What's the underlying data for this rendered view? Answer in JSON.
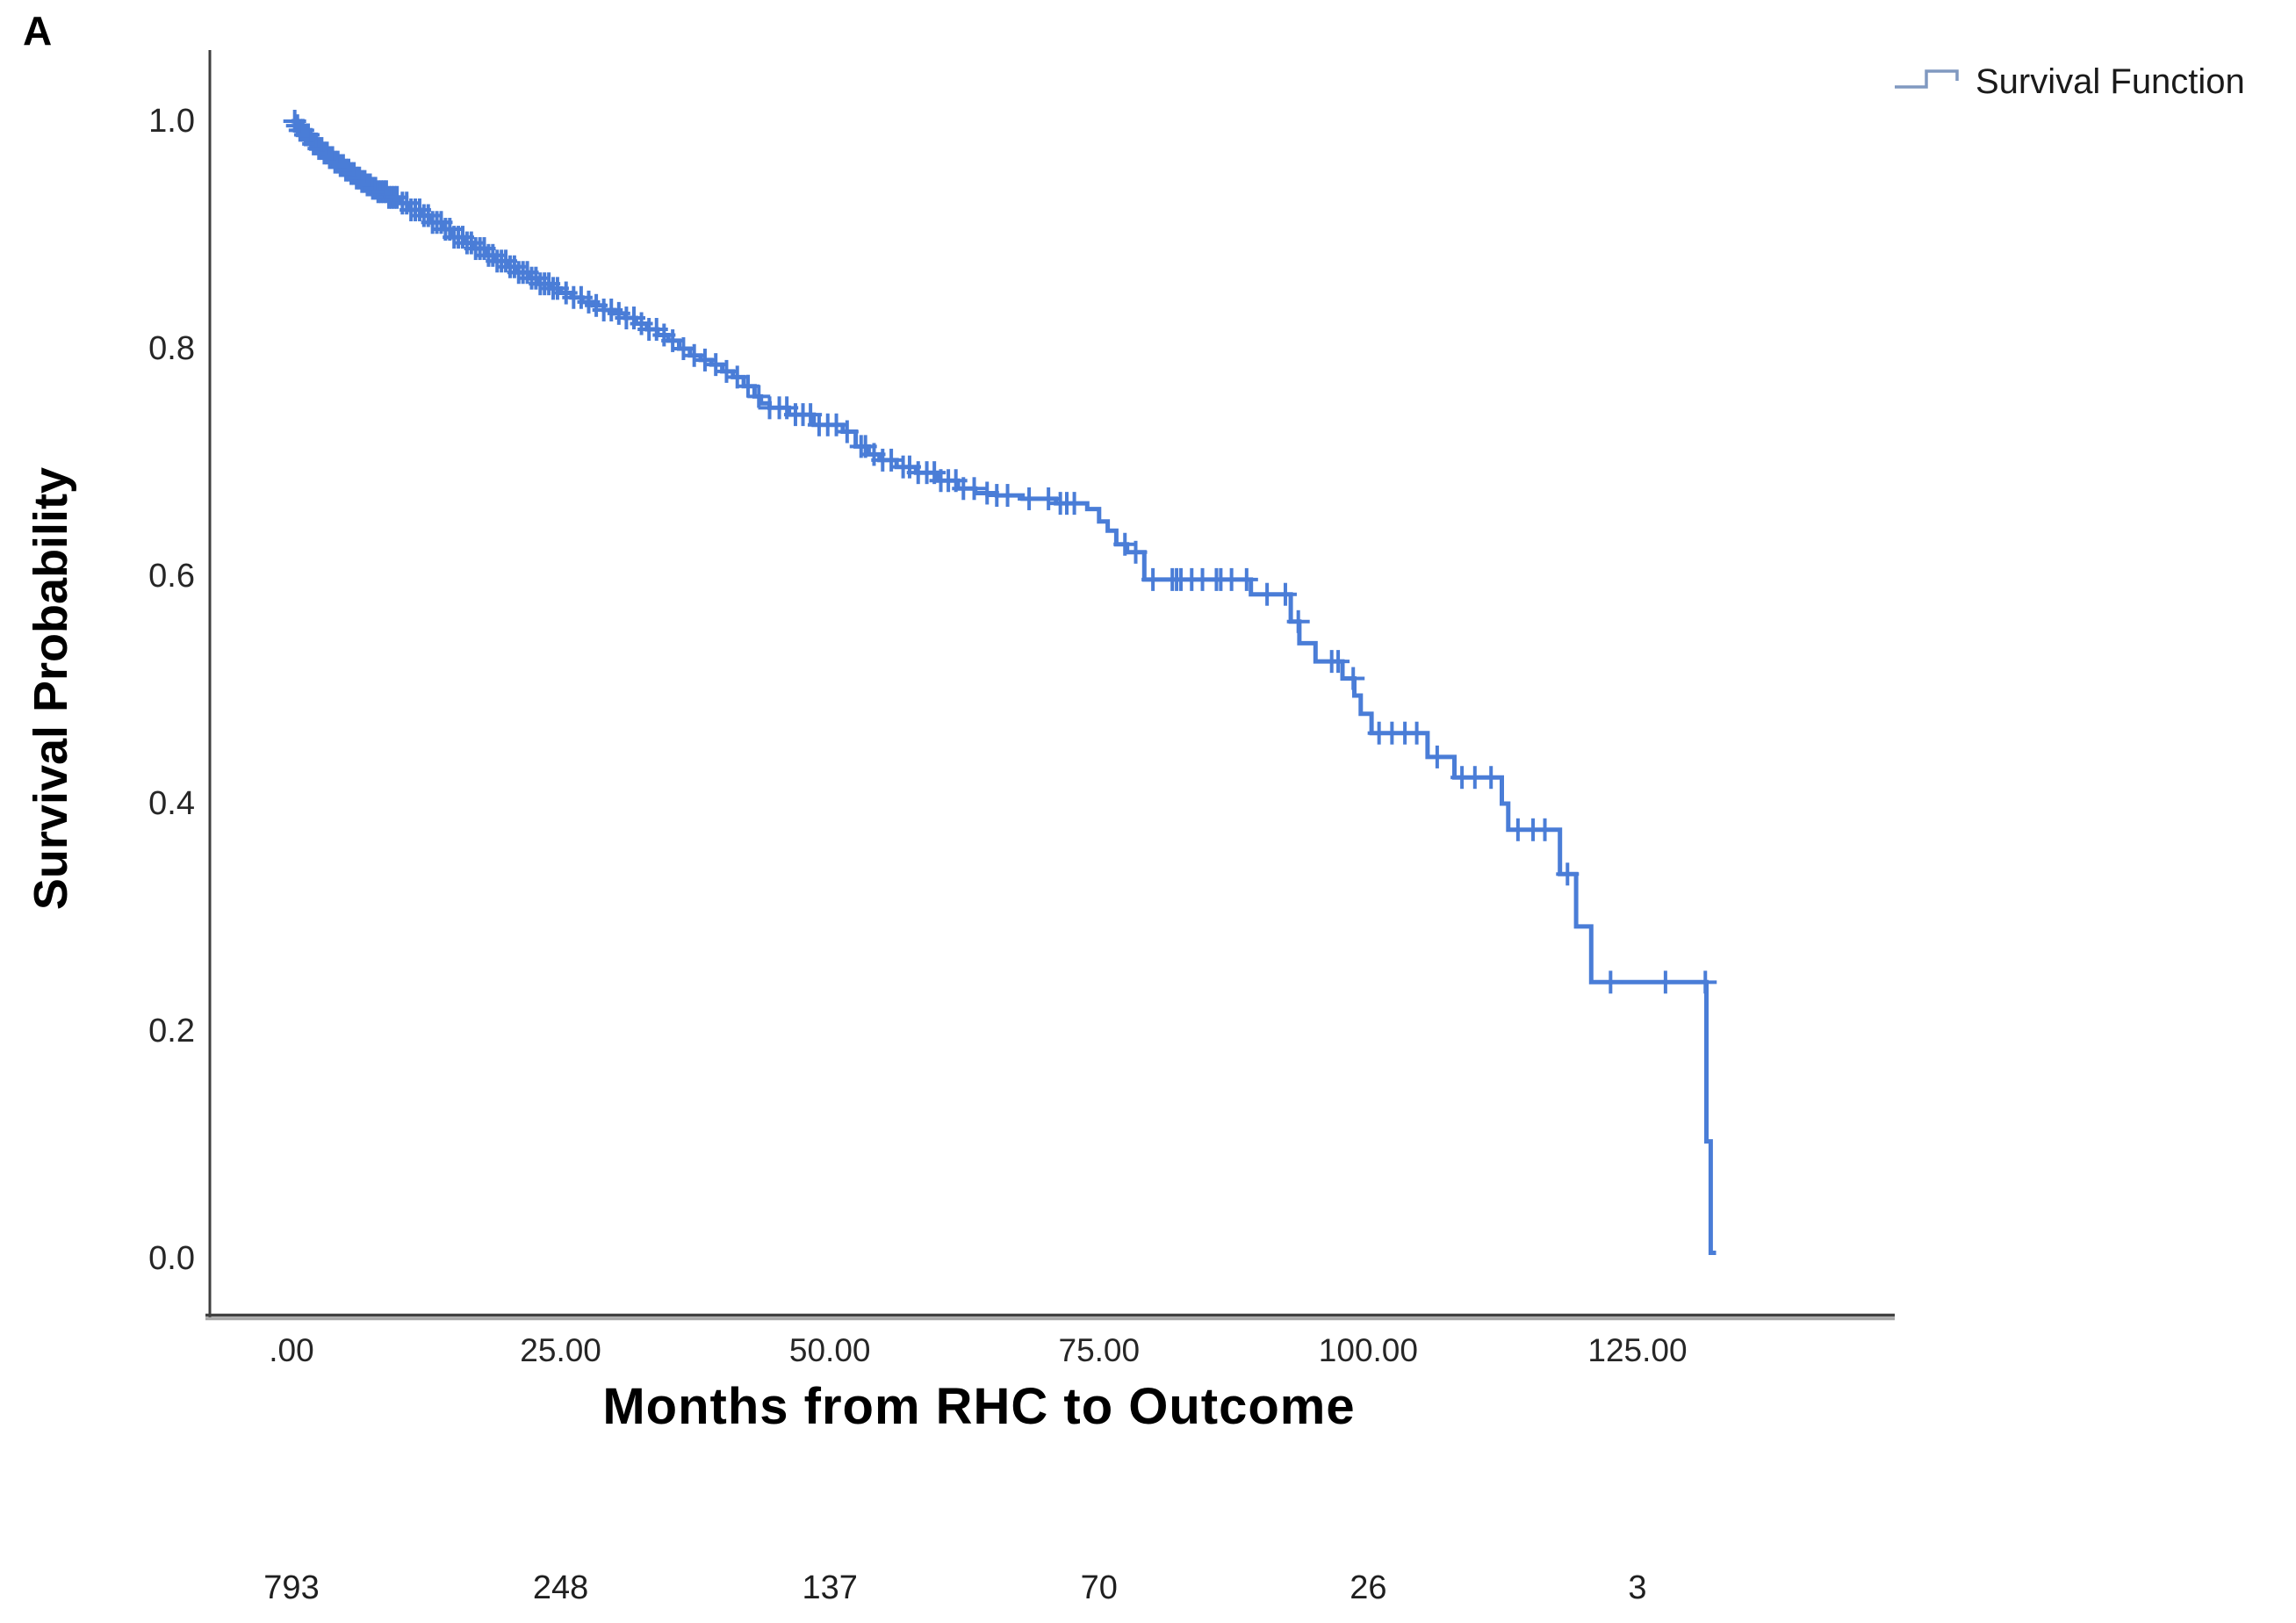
{
  "panel_label": "A",
  "legend": {
    "items": [
      {
        "label": "Survival Function"
      }
    ]
  },
  "colors": {
    "curve": "#4a7dd7",
    "legend_icon": "#8099c0",
    "axis": "#3f3f3f",
    "axis_shadow": "#a8a8a8"
  },
  "chart_data": {
    "type": "line",
    "subtype": "kaplan_meier_step_with_censoring",
    "title": "",
    "xlabel": "Months from RHC to Outcome",
    "ylabel": "Survival Probability",
    "legend_position": "top-right",
    "grid": false,
    "xlim": [
      -8,
      149
    ],
    "ylim": [
      0,
      1.06
    ],
    "x_ticks": [
      {
        "label": ".00",
        "value": 0
      },
      {
        "label": "25.00",
        "value": 25
      },
      {
        "label": "50.00",
        "value": 50
      },
      {
        "label": "75.00",
        "value": 75
      },
      {
        "label": "100.00",
        "value": 100
      },
      {
        "label": "125.00",
        "value": 125
      }
    ],
    "y_ticks": [
      {
        "label": "1.0",
        "value": 1.0
      },
      {
        "label": "0.8",
        "value": 0.8
      },
      {
        "label": "0.6",
        "value": 0.6
      },
      {
        "label": "0.4",
        "value": 0.4
      },
      {
        "label": "0.2",
        "value": 0.2
      },
      {
        "label": "0.0",
        "value": 0.0
      }
    ],
    "series": [
      {
        "name": "Survival Function",
        "steps": [
          [
            0,
            1.0
          ],
          [
            0.4,
            0.996
          ],
          [
            0.8,
            0.992
          ],
          [
            1.2,
            0.988
          ],
          [
            1.6,
            0.984
          ],
          [
            2.0,
            0.98
          ],
          [
            2.5,
            0.976
          ],
          [
            3.0,
            0.972
          ],
          [
            3.5,
            0.968
          ],
          [
            4.0,
            0.964
          ],
          [
            4.5,
            0.961
          ],
          [
            5.0,
            0.957
          ],
          [
            5.5,
            0.954
          ],
          [
            6.0,
            0.95
          ],
          [
            6.5,
            0.947
          ],
          [
            7.0,
            0.944
          ],
          [
            7.5,
            0.941
          ],
          [
            8.0,
            0.938
          ],
          [
            9.0,
            0.933
          ],
          [
            10.0,
            0.928
          ],
          [
            11.0,
            0.922
          ],
          [
            12.0,
            0.917
          ],
          [
            13.0,
            0.911
          ],
          [
            14.0,
            0.905
          ],
          [
            15.0,
            0.898
          ],
          [
            16.0,
            0.893
          ],
          [
            17.0,
            0.888
          ],
          [
            18.0,
            0.882
          ],
          [
            19.0,
            0.877
          ],
          [
            20.0,
            0.872
          ],
          [
            21.0,
            0.867
          ],
          [
            22.0,
            0.862
          ],
          [
            23.0,
            0.857
          ],
          [
            24.0,
            0.853
          ],
          [
            25.0,
            0.849
          ],
          [
            26.0,
            0.845
          ],
          [
            27.0,
            0.841
          ],
          [
            28.0,
            0.838
          ],
          [
            29.0,
            0.834
          ],
          [
            30.0,
            0.831
          ],
          [
            31.0,
            0.827
          ],
          [
            32.0,
            0.822
          ],
          [
            33.0,
            0.817
          ],
          [
            34.0,
            0.812
          ],
          [
            35.0,
            0.807
          ],
          [
            36.0,
            0.8
          ],
          [
            37.0,
            0.794
          ],
          [
            38.0,
            0.79
          ],
          [
            39.0,
            0.786
          ],
          [
            40.0,
            0.78
          ],
          [
            41.0,
            0.775
          ],
          [
            42.0,
            0.767
          ],
          [
            43.0,
            0.758
          ],
          [
            43.6,
            0.752
          ],
          [
            44.4,
            0.748
          ],
          [
            46.2,
            0.742
          ],
          [
            48.5,
            0.733
          ],
          [
            51.2,
            0.727
          ],
          [
            52.4,
            0.714
          ],
          [
            53.6,
            0.707
          ],
          [
            54.6,
            0.702
          ],
          [
            56.2,
            0.696
          ],
          [
            58.0,
            0.691
          ],
          [
            60.0,
            0.684
          ],
          [
            61.9,
            0.677
          ],
          [
            63.5,
            0.673
          ],
          [
            65.5,
            0.671
          ],
          [
            67.9,
            0.668
          ],
          [
            71.0,
            0.664
          ],
          [
            73.9,
            0.659
          ],
          [
            75.0,
            0.648
          ],
          [
            75.8,
            0.64
          ],
          [
            76.6,
            0.628
          ],
          [
            77.6,
            0.621
          ],
          [
            79.2,
            0.597
          ],
          [
            89.1,
            0.584
          ],
          [
            92.8,
            0.56
          ],
          [
            93.6,
            0.541
          ],
          [
            95.1,
            0.525
          ],
          [
            97.6,
            0.51
          ],
          [
            98.7,
            0.495
          ],
          [
            99.3,
            0.479
          ],
          [
            100.3,
            0.462
          ],
          [
            105.5,
            0.441
          ],
          [
            108.0,
            0.423
          ],
          [
            112.4,
            0.4
          ],
          [
            113.0,
            0.377
          ],
          [
            117.8,
            0.338
          ],
          [
            119.3,
            0.292
          ],
          [
            120.7,
            0.243
          ],
          [
            131.4,
            0.103
          ],
          [
            131.8,
            0.005
          ]
        ],
        "curve_end_time": 132.3,
        "censor_dense_ranges": [
          [
            0.3,
            10.0,
            0.25
          ],
          [
            10.3,
            25.0,
            0.4
          ],
          [
            25.5,
            35.0,
            0.7
          ],
          [
            35.4,
            44.4,
            1.0
          ]
        ],
        "censor_times": [
          45.3,
          46.0,
          46.8,
          47.5,
          48.2,
          49.0,
          49.8,
          50.6,
          51.6,
          52.9,
          53.3,
          54.1,
          54.9,
          55.7,
          56.8,
          57.4,
          58.2,
          59.0,
          59.7,
          60.3,
          61.0,
          61.7,
          62.4,
          63.4,
          64.6,
          65.5,
          66.5,
          68.5,
          70.3,
          71.4,
          72.0,
          72.7,
          77.4,
          78.4,
          80.0,
          81.8,
          82.2,
          82.6,
          83.6,
          84.6,
          85.9,
          86.3,
          87.3,
          88.7,
          90.6,
          92.3,
          93.5,
          96.6,
          97.2,
          98.6,
          101.0,
          102.2,
          103.4,
          104.5,
          106.4,
          108.7,
          109.9,
          111.4,
          113.9,
          115.3,
          116.4,
          118.5,
          122.5,
          127.6,
          131.3
        ]
      }
    ],
    "numbers_at_risk": {
      "values": [
        "793",
        "248",
        "137",
        "70",
        "26",
        "3"
      ],
      "times": [
        0,
        25,
        50,
        75,
        100,
        125
      ]
    }
  }
}
